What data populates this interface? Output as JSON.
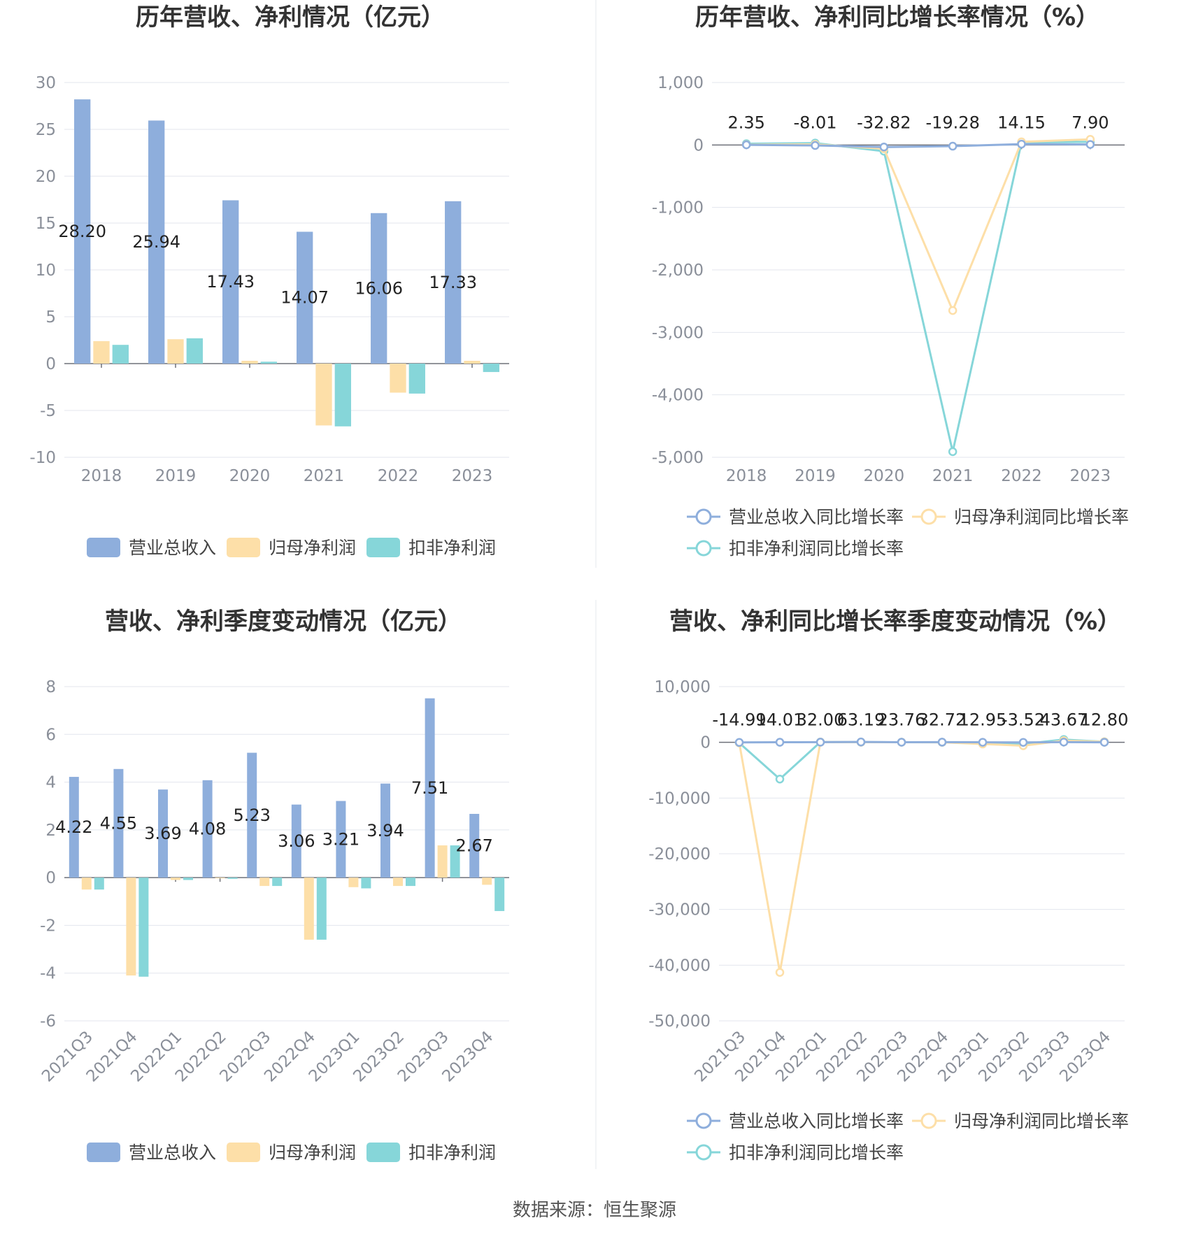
{
  "source_prefix": "数据来源：",
  "source_name": "恒生聚源",
  "colors": {
    "revenue": "#8eaedc",
    "net_profit": "#fddfa8",
    "deducted_profit": "#86d6d9",
    "grid": "#e3e6ee",
    "tick": "#8a8f99"
  },
  "chart_data": [
    {
      "type": "bar",
      "title": "历年营收、净利情况（亿元）",
      "categories": [
        "2018",
        "2019",
        "2020",
        "2021",
        "2022",
        "2023"
      ],
      "ylim": [
        -10,
        30
      ],
      "yticks": [
        -10,
        -5,
        0,
        5,
        10,
        15,
        20,
        25,
        30
      ],
      "grid": true,
      "legend_position": "bottom",
      "series": [
        {
          "name": "营业总收入",
          "values": [
            28.2,
            25.94,
            17.43,
            14.07,
            16.06,
            17.33
          ],
          "labels": [
            "28.20",
            "25.94",
            "17.43",
            "14.07",
            "16.06",
            "17.33"
          ]
        },
        {
          "name": "归母净利润",
          "values": [
            2.4,
            2.6,
            0.3,
            -6.6,
            -3.1,
            0.3
          ]
        },
        {
          "name": "扣非净利润",
          "values": [
            2.0,
            2.7,
            0.2,
            -6.7,
            -3.2,
            -0.9
          ]
        }
      ]
    },
    {
      "type": "line",
      "title": "历年营收、净利同比增长率情况（%）",
      "categories": [
        "2018",
        "2019",
        "2020",
        "2021",
        "2022",
        "2023"
      ],
      "ylim": [
        -5000,
        1000
      ],
      "yticks": [
        -5000,
        -4000,
        -3000,
        -2000,
        -1000,
        0,
        1000
      ],
      "ytick_labels": [
        "-5,000",
        "-4,000",
        "-3,000",
        "-2,000",
        "-1,000",
        "0",
        "1,000"
      ],
      "grid": true,
      "legend_position": "bottom",
      "series": [
        {
          "name": "营业总收入同比增长率",
          "values": [
            2.35,
            -8.01,
            -32.82,
            -19.28,
            14.15,
            7.9
          ],
          "labels": [
            "2.35",
            "-8.01",
            "-32.82",
            "-19.28",
            "14.15",
            "7.90"
          ]
        },
        {
          "name": "归母净利润同比增长率",
          "values": [
            5,
            10,
            -60,
            -2650,
            50,
            90
          ]
        },
        {
          "name": "扣非净利润同比增长率",
          "values": [
            20,
            30,
            -100,
            -4910,
            40,
            50
          ]
        }
      ]
    },
    {
      "type": "bar",
      "title": "营收、净利季度变动情况（亿元）",
      "categories": [
        "2021Q3",
        "2021Q4",
        "2022Q1",
        "2022Q2",
        "2022Q3",
        "2022Q4",
        "2023Q1",
        "2023Q2",
        "2023Q3",
        "2023Q4"
      ],
      "ylim": [
        -6,
        8
      ],
      "yticks": [
        -6,
        -4,
        -2,
        0,
        2,
        4,
        6,
        8
      ],
      "grid": true,
      "legend_position": "bottom",
      "series": [
        {
          "name": "营业总收入",
          "values": [
            4.22,
            4.55,
            3.69,
            4.08,
            5.23,
            3.06,
            3.21,
            3.94,
            7.51,
            2.67
          ],
          "labels": [
            "4.22",
            "4.55",
            "3.69",
            "4.08",
            "5.23",
            "3.06",
            "3.21",
            "3.94",
            "7.51",
            "2.67"
          ]
        },
        {
          "name": "归母净利润",
          "values": [
            -0.5,
            -4.1,
            -0.1,
            0.0,
            -0.35,
            -2.6,
            -0.4,
            -0.35,
            1.35,
            -0.3
          ]
        },
        {
          "name": "扣非净利润",
          "values": [
            -0.5,
            -4.15,
            -0.1,
            -0.05,
            -0.35,
            -2.6,
            -0.45,
            -0.35,
            1.35,
            -1.4
          ]
        }
      ]
    },
    {
      "type": "line",
      "title": "营收、净利同比增长率季度变动情况（%）",
      "categories": [
        "2021Q3",
        "2021Q4",
        "2022Q1",
        "2022Q2",
        "2022Q3",
        "2022Q4",
        "2023Q1",
        "2023Q2",
        "2023Q3",
        "2023Q4"
      ],
      "ylim": [
        -50000,
        10000
      ],
      "yticks": [
        -50000,
        -40000,
        -30000,
        -20000,
        -10000,
        0,
        10000
      ],
      "ytick_labels": [
        "-50,000",
        "-40,000",
        "-30,000",
        "-20,000",
        "-10,000",
        "0",
        "10,000"
      ],
      "grid": true,
      "legend_position": "bottom",
      "series": [
        {
          "name": "营业总收入同比增长率",
          "values": [
            -14.99,
            14.01,
            32.0,
            63.19,
            23.76,
            32.72,
            12.95,
            -3.52,
            43.67,
            12.8
          ],
          "labels": [
            "-14.99",
            "14.01",
            "32.00",
            "63.19",
            "23.76",
            "32.72",
            "12.95",
            "-3.52",
            "43.67",
            "12.80"
          ]
        },
        {
          "name": "归母净利润同比增长率",
          "values": [
            -100,
            -41300,
            50,
            30,
            20,
            10,
            -300,
            -600,
            300,
            100
          ]
        },
        {
          "name": "扣非净利润同比增长率",
          "values": [
            -100,
            -6600,
            50,
            30,
            20,
            10,
            -200,
            -300,
            500,
            100
          ]
        }
      ]
    }
  ]
}
